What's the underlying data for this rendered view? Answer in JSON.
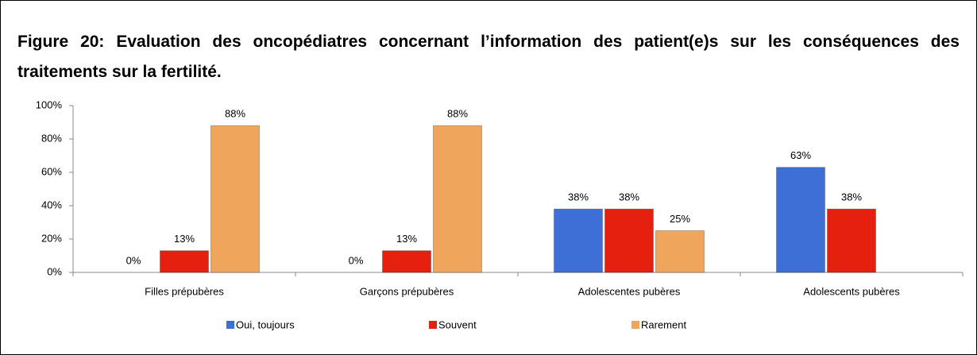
{
  "chart_data": {
    "type": "bar",
    "title": "Figure 20: Evaluation des oncopédiatres concernant l’information des patient(e)s sur les conséquences des traitements sur la fertilité.",
    "categories": [
      "Filles prépubères",
      "Garçons prépubères",
      "Adolescentes pubères",
      "Adolescents pubères"
    ],
    "series": [
      {
        "name": "Oui, toujours",
        "color": "#3d6fd6",
        "values": [
          0,
          0,
          38,
          63
        ],
        "value_labels": [
          "0%",
          "0%",
          "38%",
          "63%"
        ]
      },
      {
        "name": "Souvent",
        "color": "#e5200e",
        "values": [
          13,
          13,
          38,
          38
        ],
        "value_labels": [
          "13%",
          "13%",
          "38%",
          "38%"
        ]
      },
      {
        "name": "Rarement",
        "color": "#efa55c",
        "values": [
          88,
          88,
          25,
          null
        ],
        "value_labels": [
          "88%",
          "88%",
          "25%",
          null
        ]
      }
    ],
    "ylim": [
      0,
      100
    ],
    "yticks": [
      {
        "value": 0,
        "label": "0%"
      },
      {
        "value": 20,
        "label": "20%"
      },
      {
        "value": 40,
        "label": "40%"
      },
      {
        "value": 60,
        "label": "60%"
      },
      {
        "value": 80,
        "label": "80%"
      },
      {
        "value": 100,
        "label": "100%"
      }
    ],
    "grid": false,
    "legend": "bottom"
  }
}
